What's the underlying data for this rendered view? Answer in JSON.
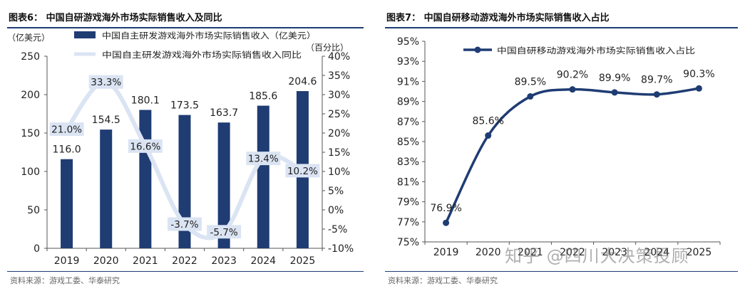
{
  "watermark": "知乎 @四川大决策投顾",
  "charts": [
    {
      "figure_title": "图表6：  中国自研游戏海外市场实际销售收入及同比",
      "source": "资料来源：游戏工委、华泰研究",
      "chart_data": {
        "type": "bar+line",
        "categories": [
          "2019",
          "2020",
          "2021",
          "2022",
          "2023",
          "2024",
          "2025"
        ],
        "series": [
          {
            "name": "中国自主研发游戏海外市场实际销售收入（亿美元）",
            "type": "bar",
            "axis": "left",
            "values": [
              116.0,
              154.5,
              180.1,
              173.5,
              163.7,
              185.6,
              204.6
            ],
            "labels": [
              "116.0",
              "154.5",
              "180.1",
              "173.5",
              "163.7",
              "185.6",
              "204.6"
            ],
            "color": "#1f3c73"
          },
          {
            "name": "中国自主研发游戏海外市场实际销售收入同比",
            "type": "line",
            "axis": "right",
            "values": [
              21.0,
              33.3,
              16.6,
              -3.7,
              -5.7,
              13.4,
              10.2
            ],
            "labels": [
              "21.0%",
              "33.3%",
              "16.6%",
              "-3.7%",
              "-5.7%",
              "13.4%",
              "10.2%"
            ],
            "color": "#dbe4f3"
          }
        ],
        "ylabel_left": "（亿美元）",
        "ylabel_right": "（百分比）",
        "ylim_left": [
          0,
          250
        ],
        "ylim_right": [
          -10,
          40
        ],
        "yticks_left": [
          "0",
          "50",
          "100",
          "150",
          "200",
          "250"
        ],
        "yticks_right": [
          "-10%",
          "-5%",
          "0%",
          "5%",
          "10%",
          "15%",
          "20%",
          "25%",
          "30%",
          "35%",
          "40%"
        ],
        "grid": false,
        "legend": "top"
      }
    },
    {
      "figure_title": "图表7：  中国自研移动游戏海外市场实际销售收入占比",
      "source": "资料来源：游戏工委、华泰研究",
      "chart_data": {
        "type": "line",
        "categories": [
          "2019",
          "2020",
          "2021",
          "2022",
          "2023",
          "2024",
          "2025"
        ],
        "series": [
          {
            "name": "中国自研移动游戏海外市场实际销售收入占比",
            "values": [
              76.9,
              85.6,
              89.5,
              90.2,
              89.9,
              89.7,
              90.3
            ],
            "labels": [
              "76.9%",
              "85.6%",
              "89.5%",
              "90.2%",
              "89.9%",
              "89.7%",
              "90.3%"
            ],
            "color": "#1f3c73"
          }
        ],
        "ylim": [
          75,
          95
        ],
        "yticks": [
          "75%",
          "77%",
          "79%",
          "81%",
          "83%",
          "85%",
          "87%",
          "89%",
          "91%",
          "93%",
          "95%"
        ],
        "grid": false,
        "legend": "top"
      }
    }
  ]
}
